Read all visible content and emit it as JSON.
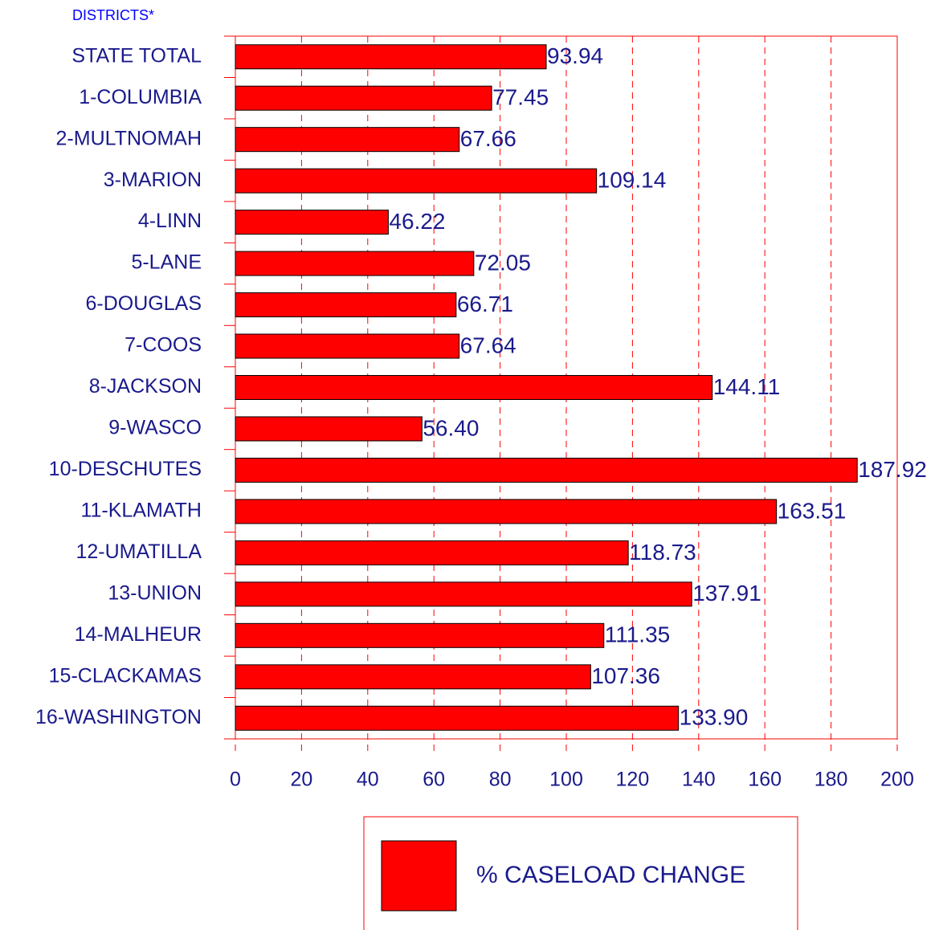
{
  "chart_data": {
    "type": "bar",
    "orientation": "horizontal",
    "y_label": "DISTRICTS*",
    "categories": [
      "STATE TOTAL",
      "1-COLUMBIA",
      "2-MULTNOMAH",
      "3-MARION",
      "4-LINN",
      "5-LANE",
      "6-DOUGLAS",
      "7-COOS",
      "8-JACKSON",
      "9-WASCO",
      "10-DESCHUTES",
      "11-KLAMATH",
      "12-UMATILLA",
      "13-UNION",
      "14-MALHEUR",
      "15-CLACKAMAS",
      "16-WASHINGTON"
    ],
    "series": [
      {
        "name": "% CASELOAD CHANGE",
        "color": "#ff0000",
        "values": [
          93.94,
          77.45,
          67.66,
          109.14,
          46.22,
          72.05,
          66.71,
          67.64,
          144.11,
          56.4,
          187.92,
          163.51,
          118.73,
          137.91,
          111.35,
          107.36,
          133.9
        ],
        "value_labels": [
          "93.94",
          "77.45",
          "67.66",
          "109.14",
          "46.22",
          "72.05",
          "66.71",
          "67.64",
          "144.11",
          "56.40",
          "187.92",
          "163.51",
          "118.73",
          "137.91",
          "111.35",
          "107.36",
          "133.90"
        ]
      }
    ],
    "xlim": [
      0,
      200
    ],
    "xticks": [
      0,
      20,
      40,
      60,
      80,
      100,
      120,
      140,
      160,
      180,
      200
    ],
    "grid": true,
    "legend": "bottom"
  }
}
